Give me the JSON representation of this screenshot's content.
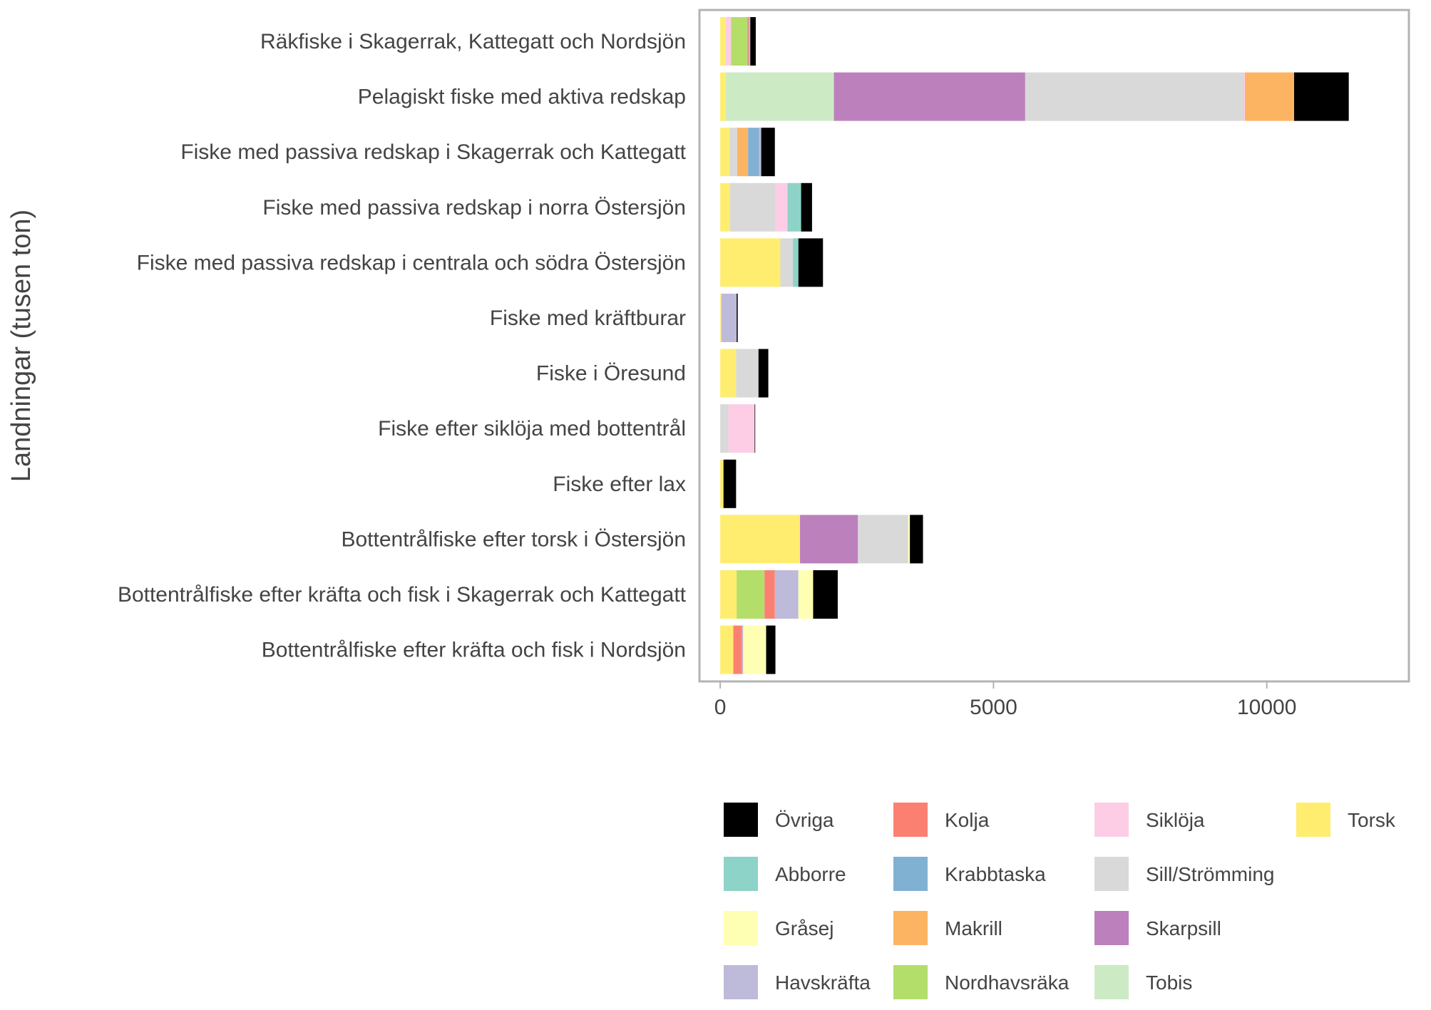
{
  "chart_data": {
    "type": "bar",
    "orientation": "horizontal",
    "stacked": true,
    "ylabel": "Landningar (tusen ton)",
    "xlabel": "",
    "x_ticks": [
      "0",
      "5000",
      "10000"
    ],
    "xlim": [
      -380,
      12600
    ],
    "grid": false,
    "legend_position": "bottom-right",
    "categories": [
      "Räkfiske i Skagerrak, Kattegatt och Nordsjön",
      "Pelagiskt fiske med aktiva redskap",
      "Fiske med passiva redskap i Skagerrak och Kattegatt",
      "Fiske med passiva redskap i norra Östersjön",
      "Fiske med passiva redskap i centrala och södra Östersjön",
      "Fiske med kräftburar",
      "Fiske i Öresund",
      "Fiske efter siklöja med bottentrål",
      "Fiske efter lax",
      "Bottentrålfiske efter torsk i Östersjön",
      "Bottentrålfiske efter kräfta och fisk i Skagerrak och Kattegatt",
      "Bottentrålfiske efter kräfta och fisk i Nordsjön"
    ],
    "stack_order": [
      "Torsk",
      "Tobis",
      "Skarpsill",
      "Sill/Strömming",
      "Siklöja",
      "Nordhavsräka",
      "Makrill",
      "Krabbtaska",
      "Kolja",
      "Havskräfta",
      "Gråsej",
      "Abborre",
      "Övriga"
    ],
    "legend_order": [
      "Övriga",
      "Abborre",
      "Gråsej",
      "Havskräfta",
      "Kolja",
      "Krabbtaska",
      "Makrill",
      "Nordhavsräka",
      "Siklöja",
      "Sill/Strömming",
      "Skarpsill",
      "Tobis",
      "Torsk"
    ],
    "series": [
      {
        "name": "Övriga",
        "color": "#000000",
        "values": [
          100,
          1000,
          250,
          200,
          450,
          20,
          180,
          10,
          230,
          240,
          450,
          170
        ]
      },
      {
        "name": "Abborre",
        "color": "#8dd3c7",
        "values": [
          0,
          0,
          0,
          250,
          100,
          0,
          0,
          0,
          0,
          0,
          0,
          0
        ]
      },
      {
        "name": "Gråsej",
        "color": "#ffffb3",
        "values": [
          0,
          0,
          0,
          0,
          0,
          0,
          0,
          0,
          0,
          30,
          270,
          420
        ]
      },
      {
        "name": "Havskräfta",
        "color": "#bebada",
        "values": [
          30,
          0,
          40,
          0,
          0,
          280,
          0,
          0,
          0,
          0,
          430,
          20
        ]
      },
      {
        "name": "Kolja",
        "color": "#fb8072",
        "values": [
          20,
          0,
          0,
          0,
          0,
          0,
          0,
          0,
          0,
          0,
          190,
          160
        ]
      },
      {
        "name": "Krabbtaska",
        "color": "#80b1d3",
        "values": [
          0,
          0,
          200,
          0,
          0,
          0,
          0,
          0,
          0,
          0,
          0,
          0
        ]
      },
      {
        "name": "Makrill",
        "color": "#fdb462",
        "values": [
          0,
          900,
          200,
          0,
          0,
          0,
          0,
          0,
          0,
          0,
          0,
          0
        ]
      },
      {
        "name": "Nordhavsräka",
        "color": "#b3de69",
        "values": [
          300,
          0,
          0,
          0,
          0,
          0,
          0,
          0,
          0,
          0,
          510,
          0
        ]
      },
      {
        "name": "Siklöja",
        "color": "#fccde5",
        "values": [
          100,
          20,
          0,
          220,
          0,
          0,
          0,
          480,
          0,
          0,
          0,
          0
        ]
      },
      {
        "name": "Sill/Strömming",
        "color": "#d9d9d9",
        "values": [
          0,
          4000,
          140,
          830,
          230,
          0,
          410,
          150,
          0,
          920,
          0,
          0
        ]
      },
      {
        "name": "Skarpsill",
        "color": "#bc80bd",
        "values": [
          0,
          3500,
          0,
          0,
          0,
          0,
          0,
          0,
          0,
          1060,
          0,
          0
        ]
      },
      {
        "name": "Tobis",
        "color": "#ccebc5",
        "values": [
          0,
          1980,
          0,
          0,
          0,
          0,
          0,
          0,
          0,
          0,
          0,
          0
        ]
      },
      {
        "name": "Torsk",
        "color": "#ffed6f",
        "values": [
          100,
          100,
          170,
          180,
          1100,
          20,
          290,
          0,
          60,
          1460,
          300,
          240
        ]
      }
    ]
  }
}
